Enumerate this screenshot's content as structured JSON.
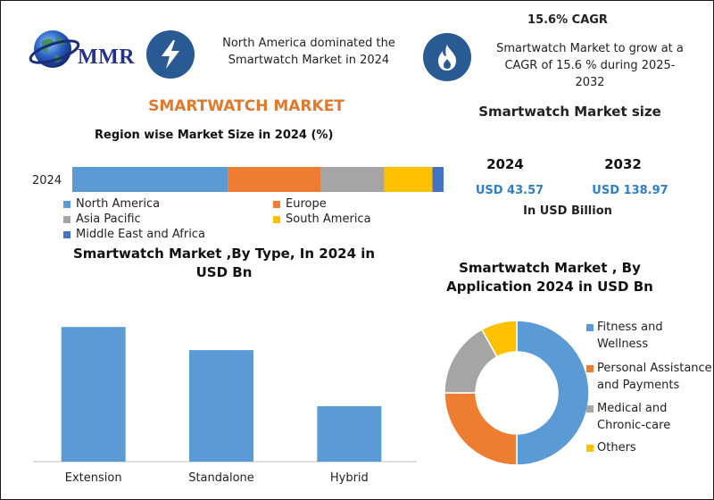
{
  "logo": {
    "text": "MMR"
  },
  "headline_left": {
    "text": "North America dominated the Smartwatch Market in 2024",
    "icon": "lightning-icon"
  },
  "headline_right": {
    "cagr_label": "15.6% CAGR",
    "text": "Smartwatch Market to grow at a CAGR of 15.6 % during 2025-2032",
    "icon": "flame-icon"
  },
  "main_title": "SMARTWATCH MARKET",
  "market_size": {
    "title": "Smartwatch Market size",
    "year_a": "2024",
    "year_b": "2032",
    "value_a": "USD 43.57",
    "value_b": "USD 138.97",
    "unit_note": "In USD Billion"
  },
  "colors": {
    "blue": "#5b9bd5",
    "orange": "#ed7d31",
    "gray": "#a5a5a5",
    "yellow": "#ffc000",
    "darkblue": "#4472c4",
    "accent_blue": "#2f7fc6",
    "orange_title": "#e0792c"
  },
  "chart_data": [
    {
      "type": "bar",
      "orientation": "horizontal-stacked",
      "title": "Region wise Market Size in 2024 (%)",
      "categories": [
        "2024"
      ],
      "series": [
        {
          "name": "North America",
          "values": [
            42
          ],
          "color": "#5b9bd5"
        },
        {
          "name": "Europe",
          "values": [
            25
          ],
          "color": "#ed7d31"
        },
        {
          "name": "Asia Pacific",
          "values": [
            17
          ],
          "color": "#a5a5a5"
        },
        {
          "name": "South America",
          "values": [
            13
          ],
          "color": "#ffc000"
        },
        {
          "name": "Middle East and Africa",
          "values": [
            3
          ],
          "color": "#4472c4"
        }
      ],
      "xlim": [
        0,
        100
      ]
    },
    {
      "type": "bar",
      "title": "Smartwatch Market ,By  Type, In 2024 in USD Bn",
      "categories": [
        "Extension",
        "Standalone",
        "Hybrid"
      ],
      "values": [
        20.4,
        16.9,
        8.4
      ],
      "ylim": [
        0,
        23
      ],
      "color": "#5b9bd5"
    },
    {
      "type": "pie",
      "style": "donut",
      "title": "Smartwatch Market , By Application 2024 in USD Bn",
      "categories": [
        "Fitness and Wellness",
        "Personal Assistance and Payments",
        "Medical and Chronic-care",
        "Others"
      ],
      "values": [
        50,
        25,
        17,
        8
      ],
      "colors": [
        "#5b9bd5",
        "#ed7d31",
        "#a5a5a5",
        "#ffc000"
      ]
    }
  ]
}
